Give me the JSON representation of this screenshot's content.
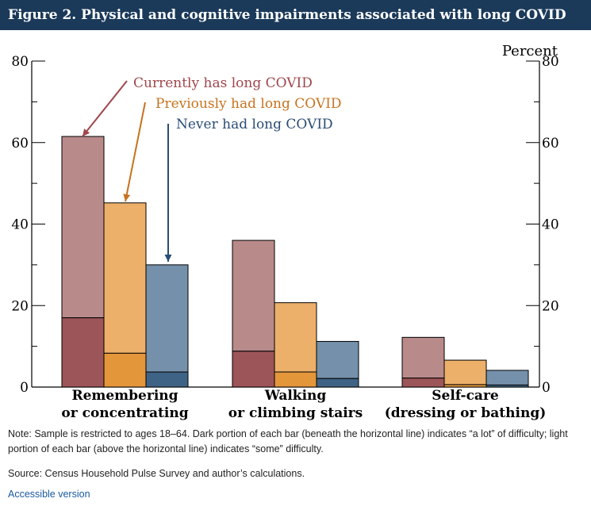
{
  "header": {
    "title": "Figure 2. Physical and cognitive impairments associated with long COVID"
  },
  "chart_data": {
    "type": "bar",
    "stacked_segments": true,
    "ylabel_right": "Percent",
    "ylim": [
      0,
      80
    ],
    "yticks": [
      0,
      20,
      40,
      60,
      80
    ],
    "categories": [
      [
        "Remembering",
        "or concentrating"
      ],
      [
        "Walking",
        "or climbing stairs"
      ],
      [
        "Self-care",
        "(dressing or bathing)"
      ]
    ],
    "series": [
      {
        "name": "Currently has long COVID",
        "total": [
          61.5,
          36,
          12.2
        ],
        "a_lot": [
          17,
          8.8,
          2.2
        ],
        "color_light": "#b98a8a",
        "color_dark": "#9c5558",
        "label_color": "#a0464b"
      },
      {
        "name": "Previously had long COVID",
        "total": [
          45.2,
          20.7,
          6.6
        ],
        "a_lot": [
          8.3,
          3.7,
          0.6
        ],
        "color_light": "#ecb06a",
        "color_dark": "#e4963a",
        "label_color": "#c7731f"
      },
      {
        "name": "Never had long COVID",
        "total": [
          30,
          11.2,
          4.1
        ],
        "a_lot": [
          3.7,
          2.1,
          0.5
        ],
        "color_light": "#7590aa",
        "color_dark": "#3f6385",
        "label_color": "#2a4d75"
      }
    ]
  },
  "note": "Note: Sample is restricted to ages 18–64. Dark portion of each bar (beneath the horizontal line) indicates “a lot” of difficulty; light portion of each bar (above the horizontal line) indicates “some” difficulty.",
  "source": "Source: Census Household Pulse Survey and author’s calculations.",
  "accessible_link": "Accessible version"
}
